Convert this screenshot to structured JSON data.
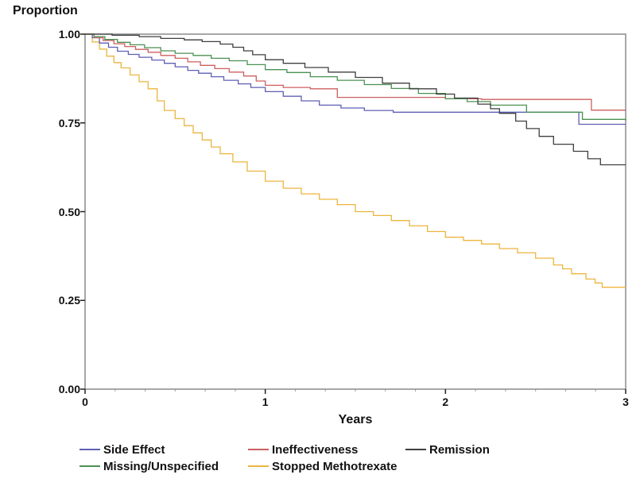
{
  "chart_data": {
    "type": "line",
    "subtype": "step-survival",
    "title": "Proportion",
    "xlabel": "Years",
    "ylabel": "Proportion",
    "xlim": [
      0,
      3
    ],
    "ylim": [
      0,
      1
    ],
    "grid": false,
    "legend_position": "bottom",
    "axis_color": "#8a8a8a",
    "tick_color": "#222222",
    "x_ticks": [
      {
        "v": 0,
        "label": "0"
      },
      {
        "v": 1,
        "label": "1"
      },
      {
        "v": 2,
        "label": "2"
      },
      {
        "v": 3,
        "label": "3"
      }
    ],
    "x_minor_tick_interval": 0.1666667,
    "y_ticks": [
      {
        "v": 0.0,
        "label": "0.00"
      },
      {
        "v": 0.25,
        "label": "0.25"
      },
      {
        "v": 0.5,
        "label": "0.50"
      },
      {
        "v": 0.75,
        "label": "0.75"
      },
      {
        "v": 1.0,
        "label": "1.00"
      }
    ],
    "series": [
      {
        "name": "Side Effect",
        "color": "#5f5fb5",
        "points": [
          [
            0,
            1.0
          ],
          [
            0.04,
            0.99
          ],
          [
            0.08,
            0.975
          ],
          [
            0.13,
            0.963
          ],
          [
            0.18,
            0.952
          ],
          [
            0.24,
            0.943
          ],
          [
            0.3,
            0.935
          ],
          [
            0.37,
            0.927
          ],
          [
            0.44,
            0.918
          ],
          [
            0.5,
            0.908
          ],
          [
            0.57,
            0.898
          ],
          [
            0.63,
            0.89
          ],
          [
            0.7,
            0.88
          ],
          [
            0.77,
            0.87
          ],
          [
            0.85,
            0.86
          ],
          [
            0.92,
            0.85
          ],
          [
            1.0,
            0.838
          ],
          [
            1.1,
            0.825
          ],
          [
            1.2,
            0.812
          ],
          [
            1.3,
            0.8
          ],
          [
            1.42,
            0.792
          ],
          [
            1.55,
            0.785
          ],
          [
            1.71,
            0.78
          ],
          [
            2.72,
            0.78
          ],
          [
            2.74,
            0.746
          ],
          [
            3.0,
            0.746
          ]
        ]
      },
      {
        "name": "Ineffectiveness",
        "color": "#cd5f5f",
        "points": [
          [
            0,
            1.0
          ],
          [
            0.05,
            0.99
          ],
          [
            0.1,
            0.982
          ],
          [
            0.16,
            0.973
          ],
          [
            0.22,
            0.965
          ],
          [
            0.28,
            0.957
          ],
          [
            0.35,
            0.949
          ],
          [
            0.42,
            0.94
          ],
          [
            0.5,
            0.932
          ],
          [
            0.57,
            0.922
          ],
          [
            0.64,
            0.912
          ],
          [
            0.72,
            0.903
          ],
          [
            0.8,
            0.893
          ],
          [
            0.88,
            0.882
          ],
          [
            0.95,
            0.868
          ],
          [
            1.0,
            0.856
          ],
          [
            1.1,
            0.85
          ],
          [
            1.25,
            0.846
          ],
          [
            1.4,
            0.822
          ],
          [
            2.0,
            0.818
          ],
          [
            2.2,
            0.816
          ],
          [
            2.81,
            0.786
          ],
          [
            3.0,
            0.786
          ]
        ]
      },
      {
        "name": "Remission",
        "color": "#3f3f3f",
        "points": [
          [
            0,
            1.0
          ],
          [
            0.15,
            0.997
          ],
          [
            0.3,
            0.993
          ],
          [
            0.42,
            0.988
          ],
          [
            0.55,
            0.984
          ],
          [
            0.65,
            0.979
          ],
          [
            0.75,
            0.972
          ],
          [
            0.82,
            0.963
          ],
          [
            0.88,
            0.953
          ],
          [
            0.93,
            0.942
          ],
          [
            1.0,
            0.928
          ],
          [
            1.1,
            0.918
          ],
          [
            1.22,
            0.906
          ],
          [
            1.35,
            0.893
          ],
          [
            1.5,
            0.878
          ],
          [
            1.65,
            0.862
          ],
          [
            1.8,
            0.846
          ],
          [
            1.95,
            0.831
          ],
          [
            2.05,
            0.82
          ],
          [
            2.18,
            0.803
          ],
          [
            2.25,
            0.79
          ],
          [
            2.3,
            0.777
          ],
          [
            2.39,
            0.755
          ],
          [
            2.45,
            0.734
          ],
          [
            2.52,
            0.712
          ],
          [
            2.6,
            0.69
          ],
          [
            2.71,
            0.67
          ],
          [
            2.79,
            0.649
          ],
          [
            2.86,
            0.632
          ],
          [
            3.0,
            0.632
          ]
        ]
      },
      {
        "name": "Missing/Unspecified",
        "color": "#4b9152",
        "points": [
          [
            0,
            1.0
          ],
          [
            0.05,
            0.993
          ],
          [
            0.11,
            0.985
          ],
          [
            0.18,
            0.977
          ],
          [
            0.25,
            0.97
          ],
          [
            0.33,
            0.962
          ],
          [
            0.42,
            0.953
          ],
          [
            0.5,
            0.946
          ],
          [
            0.6,
            0.94
          ],
          [
            0.7,
            0.932
          ],
          [
            0.8,
            0.925
          ],
          [
            0.9,
            0.914
          ],
          [
            1.0,
            0.9
          ],
          [
            1.12,
            0.892
          ],
          [
            1.25,
            0.88
          ],
          [
            1.4,
            0.87
          ],
          [
            1.55,
            0.858
          ],
          [
            1.7,
            0.847
          ],
          [
            1.85,
            0.833
          ],
          [
            2.0,
            0.818
          ],
          [
            2.12,
            0.81
          ],
          [
            2.25,
            0.8
          ],
          [
            2.45,
            0.78
          ],
          [
            2.76,
            0.76
          ],
          [
            3.0,
            0.757
          ]
        ]
      },
      {
        "name": "Stopped Methotrexate",
        "color": "#ecb53e",
        "points": [
          [
            0,
            1.0
          ],
          [
            0.04,
            0.978
          ],
          [
            0.08,
            0.958
          ],
          [
            0.12,
            0.938
          ],
          [
            0.16,
            0.92
          ],
          [
            0.2,
            0.905
          ],
          [
            0.25,
            0.885
          ],
          [
            0.3,
            0.866
          ],
          [
            0.35,
            0.846
          ],
          [
            0.4,
            0.812
          ],
          [
            0.44,
            0.785
          ],
          [
            0.5,
            0.762
          ],
          [
            0.55,
            0.742
          ],
          [
            0.6,
            0.722
          ],
          [
            0.65,
            0.702
          ],
          [
            0.7,
            0.682
          ],
          [
            0.75,
            0.663
          ],
          [
            0.82,
            0.64
          ],
          [
            0.9,
            0.614
          ],
          [
            1.0,
            0.586
          ],
          [
            1.1,
            0.566
          ],
          [
            1.2,
            0.55
          ],
          [
            1.3,
            0.535
          ],
          [
            1.4,
            0.52
          ],
          [
            1.5,
            0.5
          ],
          [
            1.6,
            0.489
          ],
          [
            1.7,
            0.475
          ],
          [
            1.8,
            0.46
          ],
          [
            1.9,
            0.444
          ],
          [
            2.0,
            0.428
          ],
          [
            2.1,
            0.419
          ],
          [
            2.2,
            0.409
          ],
          [
            2.3,
            0.396
          ],
          [
            2.4,
            0.384
          ],
          [
            2.5,
            0.369
          ],
          [
            2.6,
            0.35
          ],
          [
            2.65,
            0.339
          ],
          [
            2.7,
            0.325
          ],
          [
            2.78,
            0.31
          ],
          [
            2.83,
            0.299
          ],
          [
            2.87,
            0.287
          ],
          [
            3.0,
            0.287
          ]
        ]
      }
    ]
  }
}
